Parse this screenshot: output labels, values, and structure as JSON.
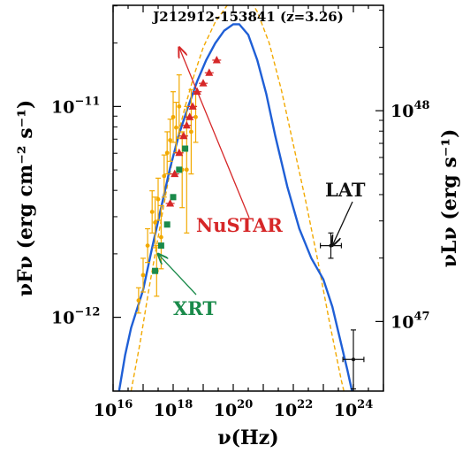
{
  "chart_data": {
    "type": "scatter",
    "title": "J212912-153841 (z=3.26)",
    "xlabel": "ν(Hz)",
    "ylabel_left": "νFν (erg cm⁻² s⁻¹)",
    "ylabel_right": "νLν (erg s⁻¹)",
    "x_scale": "log",
    "y_scale": "log",
    "xlim_log10": [
      16.0,
      25.0
    ],
    "ylim_log10": [
      -12.35,
      -10.52
    ],
    "x_ticks": [
      {
        "log": 16,
        "base": "10",
        "exp": "16"
      },
      {
        "log": 18,
        "base": "10",
        "exp": "18"
      },
      {
        "log": 20,
        "base": "10",
        "exp": "20"
      },
      {
        "log": 22,
        "base": "10",
        "exp": "22"
      },
      {
        "log": 24,
        "base": "10",
        "exp": "24"
      }
    ],
    "y_ticks_left": [
      {
        "log": -11,
        "base": "10",
        "exp": "−11"
      },
      {
        "log": -12,
        "base": "10",
        "exp": "−12"
      }
    ],
    "y_ticks_right": [
      {
        "log": -11.02,
        "base": "10",
        "exp": "48"
      },
      {
        "log": -12.02,
        "base": "10",
        "exp": "47"
      }
    ],
    "grid": false,
    "annotations": [
      {
        "text": "NuSTAR",
        "color": "#d62728",
        "target": [
          18.2,
          -10.72
        ]
      },
      {
        "text": "XRT",
        "color": "#1a8a4a",
        "target": [
          17.5,
          -11.7
        ]
      },
      {
        "text": "LAT",
        "color": "#111111",
        "target": [
          23.3,
          -11.66
        ]
      }
    ],
    "series": [
      {
        "color": "#f2a900",
        "style": "dashed-line",
        "x": [
          16.6,
          16.9,
          17.2,
          17.5,
          17.8,
          18.1,
          18.4,
          18.7,
          19.0,
          19.4,
          19.8,
          20.2,
          20.5,
          20.8,
          21.2,
          21.6,
          22.0,
          22.4,
          22.8,
          23.2,
          23.6,
          23.9
        ],
        "y": [
          -12.35,
          -12.12,
          -11.86,
          -11.62,
          -11.38,
          -11.17,
          -11.0,
          -10.85,
          -10.72,
          -10.6,
          -10.52,
          -10.47,
          -10.48,
          -10.55,
          -10.7,
          -10.92,
          -11.18,
          -11.44,
          -11.72,
          -12.02,
          -12.3,
          -12.48
        ]
      },
      {
        "color": "#1f5fd6",
        "style": "solid-line",
        "x": [
          16.2,
          16.4,
          16.6,
          16.8,
          17.0,
          17.3,
          17.6,
          17.9,
          18.2,
          18.5,
          18.8,
          19.1,
          19.4,
          19.7,
          20.0,
          20.2,
          20.5,
          20.8,
          21.1,
          21.4,
          21.8,
          22.2,
          22.6,
          23.0,
          23.3,
          23.5,
          23.8,
          24.0,
          24.2,
          24.4
        ],
        "y": [
          -12.35,
          -12.18,
          -12.05,
          -11.96,
          -11.87,
          -11.67,
          -11.48,
          -11.29,
          -11.13,
          -11.0,
          -10.88,
          -10.78,
          -10.7,
          -10.64,
          -10.61,
          -10.61,
          -10.66,
          -10.78,
          -10.94,
          -11.14,
          -11.38,
          -11.58,
          -11.72,
          -11.82,
          -11.95,
          -12.07,
          -12.25,
          -12.38,
          -12.52,
          -12.7
        ]
      },
      {
        "color": "#f2a900",
        "style": "points-errorbars",
        "points": [
          {
            "x": 16.85,
            "y": -11.92,
            "yerr": 0.06
          },
          {
            "x": 17.0,
            "y": -11.8,
            "yerr": 0.08
          },
          {
            "x": 17.15,
            "y": -11.66,
            "yerr": 0.08
          },
          {
            "x": 17.3,
            "y": -11.5,
            "yerr": 0.1
          },
          {
            "x": 17.4,
            "y": -11.55,
            "yerr": 0.12
          },
          {
            "x": 17.5,
            "y": -11.44,
            "yerr": 0.1
          },
          {
            "x": 17.6,
            "y": -11.62,
            "yerr": 0.15
          },
          {
            "x": 17.7,
            "y": -11.33,
            "yerr": 0.1
          },
          {
            "x": 17.8,
            "y": -11.22,
            "yerr": 0.1
          },
          {
            "x": 17.9,
            "y": -11.16,
            "yerr": 0.1
          },
          {
            "x": 18.0,
            "y": -11.05,
            "yerr": 0.12
          },
          {
            "x": 18.1,
            "y": -11.1,
            "yerr": 0.12
          },
          {
            "x": 18.2,
            "y": -11.0,
            "yerr": 0.15
          },
          {
            "x": 18.3,
            "y": -11.3,
            "yerr": 0.18
          },
          {
            "x": 18.45,
            "y": -11.3,
            "yerr": 0.3
          },
          {
            "x": 18.6,
            "y": -11.12,
            "yerr": 0.2
          },
          {
            "x": 18.75,
            "y": -11.05,
            "yerr": 0.12
          },
          {
            "x": 17.45,
            "y": -11.78,
            "yerr": 0.12
          }
        ]
      },
      {
        "color": "#1a8a4a",
        "style": "squares",
        "points": [
          {
            "x": 17.4,
            "y": -11.78
          },
          {
            "x": 17.6,
            "y": -11.66
          },
          {
            "x": 17.8,
            "y": -11.56
          },
          {
            "x": 18.0,
            "y": -11.43
          },
          {
            "x": 18.2,
            "y": -11.3
          },
          {
            "x": 18.4,
            "y": -11.2
          }
        ]
      },
      {
        "color": "#d62728",
        "style": "triangles",
        "points": [
          {
            "x": 17.9,
            "y": -11.46
          },
          {
            "x": 18.05,
            "y": -11.32
          },
          {
            "x": 18.2,
            "y": -11.22
          },
          {
            "x": 18.35,
            "y": -11.14
          },
          {
            "x": 18.45,
            "y": -11.09
          },
          {
            "x": 18.55,
            "y": -11.05
          },
          {
            "x": 18.65,
            "y": -11.0
          },
          {
            "x": 18.8,
            "y": -10.93
          },
          {
            "x": 19.0,
            "y": -10.89
          },
          {
            "x": 19.2,
            "y": -10.84
          },
          {
            "x": 19.45,
            "y": -10.78
          }
        ]
      },
      {
        "color": "#111111",
        "style": "points-errorbars",
        "points": [
          {
            "x": 23.25,
            "y": -11.66,
            "xerr": 0.35,
            "yerr": 0.06
          },
          {
            "x": 24.0,
            "y": -12.2,
            "xerr": 0.35,
            "yerr": 0.14
          }
        ]
      }
    ]
  }
}
